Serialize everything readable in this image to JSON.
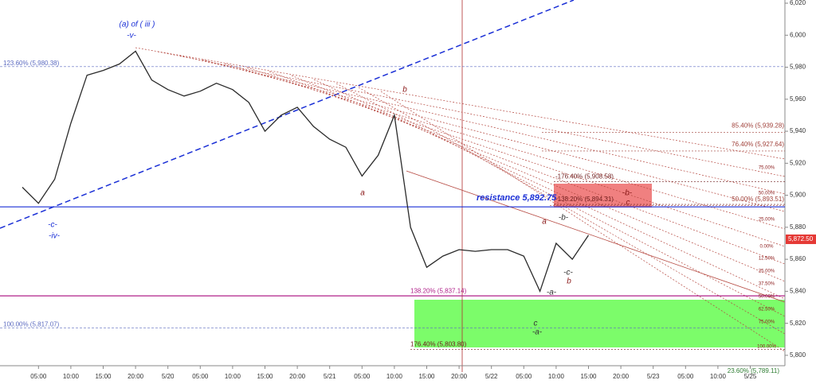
{
  "chart_data": {
    "type": "line",
    "categories": [
      null,
      "05:00",
      null,
      "10:00",
      null,
      "15:00",
      null,
      "20:00",
      null,
      "5/20",
      null,
      "05:00",
      null,
      "10:00",
      null,
      "15:00",
      null,
      "20:00",
      null,
      "5/21",
      null,
      "05:00",
      null,
      "10:00",
      null,
      "15:00",
      null,
      "20:00",
      null,
      "5/22",
      null,
      "05:00",
      null,
      "10:00",
      null,
      "15:00",
      null,
      "20:00",
      null,
      "5/23",
      null,
      "05:00",
      null,
      "10:00",
      null,
      "5/25",
      null
    ],
    "series": [
      {
        "color": "#2a2a2a",
        "values": [
          5905,
          5895,
          5910,
          5945,
          5975,
          5978,
          5982,
          5990,
          5972,
          5966,
          5962,
          5965,
          5970,
          5966,
          5958,
          5940,
          5950,
          5955,
          5943,
          5935,
          5930,
          5912,
          5925,
          5950,
          5880,
          5855,
          5862,
          5866,
          5865,
          5866,
          5866,
          5862,
          5840,
          5870,
          5860,
          5875,
          null,
          null,
          null,
          null,
          null,
          null,
          null,
          null,
          null,
          null,
          null
        ]
      }
    ],
    "ylim": [
      5793.5,
      6022
    ],
    "yticks": [
      {
        "value": 5800,
        "label": "5,800"
      },
      {
        "value": 5820,
        "label": "5,820"
      },
      {
        "value": 5840,
        "label": "5,840"
      },
      {
        "value": 5860,
        "label": "5,860"
      },
      {
        "value": 5880,
        "label": "5,880"
      },
      {
        "value": 5900,
        "label": "5,900"
      },
      {
        "value": 5920,
        "label": "5,920"
      },
      {
        "value": 5940,
        "label": "5,940"
      },
      {
        "value": 5960,
        "label": "5,960"
      },
      {
        "value": 5980,
        "label": "5,980"
      },
      {
        "value": 6000,
        "label": "6,000"
      },
      {
        "value": 6020,
        "label": "6,020"
      }
    ],
    "last_price": {
      "value": 5872.5,
      "label": "5,872.50",
      "color": "#e53935"
    },
    "levels": [
      {
        "value": 5980.38,
        "label": "123.60% (5,980.38)",
        "color": "#5c6bc0"
      },
      {
        "value": 5939.28,
        "label": "85.40% (5,939.28)",
        "color": "#a0413a"
      },
      {
        "value": 5927.64,
        "label": "76.40% (5,927.64)",
        "color": "#a0413a"
      },
      {
        "value": 5893.51,
        "label": "50.00% (5,893.51)",
        "color": "#a0413a"
      },
      {
        "value": 5908.58,
        "label": "-176.40% (5,908.58)",
        "color": "#6d1b1b"
      },
      {
        "value": 5894.31,
        "label": "-138.20% (5,894.31)",
        "color": "#6d1b1b"
      },
      {
        "value": 5892.75,
        "label": "resistance 5,892.75",
        "color": "#1a2fd6"
      },
      {
        "value": 5837.14,
        "label": "138.20% (5,837.14)",
        "color": "#b0208a"
      },
      {
        "value": 5817.07,
        "label": "100.00% (5,817.07)",
        "color": "#5c6bc0"
      },
      {
        "value": 5803.8,
        "label": "176.40% (5,803.80)",
        "color": "#6d1b1b"
      },
      {
        "value": 5789.11,
        "label": "23.60% (5,789.11)",
        "color": "#2e7d32"
      }
    ],
    "fan_labels": [
      "75.00%",
      "50.00%",
      "25.00%",
      "0.00%",
      "12.50%",
      "25.00%",
      "37.50%",
      "50.00%",
      "62.50%",
      "75.00%",
      "100.00%"
    ],
    "annotations": [
      {
        "text": "(a) of ( iii )",
        "color": "#1a2fd6"
      },
      {
        "text": "-v-",
        "color": "#1a2fd6"
      },
      {
        "text": "-c-",
        "color": "#1a2fd6"
      },
      {
        "text": "-iv-",
        "color": "#1a2fd6"
      },
      {
        "text": "b",
        "color": "#8b1a1a"
      },
      {
        "text": "a",
        "color": "#8b1a1a"
      },
      {
        "text": "a",
        "color": "#8b1a1a"
      },
      {
        "text": "-b-",
        "color": "#333333"
      },
      {
        "text": "-c-",
        "color": "#333333"
      },
      {
        "text": "b",
        "color": "#8b1a1a"
      },
      {
        "text": "-a-",
        "color": "#333333"
      },
      {
        "text": "c",
        "color": "#333333"
      },
      {
        "text": "-a-",
        "color": "#333333"
      },
      {
        "text": "-b-",
        "color": "#8b1a1a"
      },
      {
        "text": "c",
        "color": "#8b1a1a"
      }
    ]
  }
}
